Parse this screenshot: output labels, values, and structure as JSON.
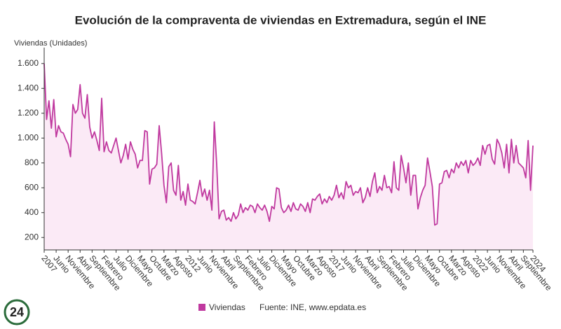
{
  "logo": "24",
  "chart_data": {
    "type": "line",
    "title": "Evolución de la compraventa de viviendas en Extremadura, según el INE",
    "y_label": "Viviendas (Unidades)",
    "source": "Fuente: INE, www.epdata.es",
    "categories": [
      "2007",
      null,
      null,
      null,
      null,
      "Junio",
      null,
      null,
      null,
      null,
      "Noviembre",
      null,
      null,
      null,
      null,
      "Abril",
      null,
      null,
      null,
      null,
      "Septiembre",
      null,
      null,
      null,
      null,
      "Febrero",
      null,
      null,
      null,
      null,
      "Julio",
      null,
      null,
      null,
      null,
      "Diciembre",
      null,
      null,
      null,
      null,
      "Mayo",
      null,
      null,
      null,
      null,
      "Octubre",
      null,
      null,
      null,
      null,
      "Marzo",
      null,
      null,
      null,
      null,
      "Agosto",
      null,
      null,
      null,
      null,
      "2012",
      null,
      null,
      null,
      null,
      "Junio",
      null,
      null,
      null,
      null,
      "Noviembre",
      null,
      null,
      null,
      null,
      "Abril",
      null,
      null,
      null,
      null,
      "Septiembre",
      null,
      null,
      null,
      null,
      "Febrero",
      null,
      null,
      null,
      null,
      "Julio",
      null,
      null,
      null,
      null,
      "Diciembre",
      null,
      null,
      null,
      null,
      "Mayo",
      null,
      null,
      null,
      null,
      "Octubre",
      null,
      null,
      null,
      null,
      "Marzo",
      null,
      null,
      null,
      null,
      "Agosto",
      null,
      null,
      null,
      null,
      "2017",
      null,
      null,
      null,
      null,
      "Junio",
      null,
      null,
      null,
      null,
      "Noviembre",
      null,
      null,
      null,
      null,
      "Abril",
      null,
      null,
      null,
      null,
      "Septiembre",
      null,
      null,
      null,
      null,
      "Febrero",
      null,
      null,
      null,
      null,
      "Julio",
      null,
      null,
      null,
      null,
      "Diciembre",
      null,
      null,
      null,
      null,
      "Mayo",
      null,
      null,
      null,
      null,
      "Octubre",
      null,
      null,
      null,
      null,
      "Marzo",
      null,
      null,
      null,
      null,
      "Agosto",
      null,
      null,
      null,
      null,
      "2022",
      null,
      null,
      null,
      null,
      "Junio",
      null,
      null,
      null,
      null,
      "Noviembre",
      null,
      null,
      null,
      null,
      "Abril",
      null,
      null,
      null,
      null,
      "Septiembre",
      null,
      null,
      null,
      "2024"
    ],
    "series": [
      {
        "name": "Viviendas",
        "color": "#c0399f",
        "values": [
          1600,
          1150,
          1300,
          1080,
          1310,
          1010,
          1100,
          1050,
          1040,
          990,
          950,
          850,
          1270,
          1200,
          1230,
          1430,
          1200,
          1160,
          1350,
          1090,
          1000,
          1050,
          980,
          900,
          1320,
          890,
          970,
          900,
          880,
          940,
          1000,
          900,
          800,
          860,
          950,
          830,
          970,
          910,
          870,
          760,
          820,
          820,
          1060,
          1050,
          630,
          750,
          760,
          790,
          1100,
          880,
          620,
          480,
          770,
          800,
          580,
          540,
          780,
          500,
          570,
          460,
          630,
          500,
          490,
          470,
          560,
          660,
          530,
          590,
          500,
          580,
          420,
          1130,
          790,
          350,
          410,
          420,
          340,
          360,
          330,
          400,
          350,
          380,
          470,
          400,
          440,
          420,
          460,
          450,
          400,
          470,
          440,
          420,
          460,
          410,
          330,
          450,
          430,
          600,
          590,
          440,
          400,
          420,
          460,
          410,
          480,
          430,
          420,
          470,
          450,
          410,
          480,
          400,
          510,
          500,
          530,
          550,
          470,
          510,
          480,
          530,
          500,
          540,
          620,
          520,
          560,
          510,
          650,
          600,
          620,
          540,
          570,
          560,
          600,
          480,
          520,
          600,
          530,
          650,
          720,
          560,
          610,
          580,
          700,
          600,
          610,
          560,
          810,
          600,
          580,
          860,
          760,
          640,
          800,
          540,
          700,
          700,
          430,
          520,
          580,
          620,
          840,
          730,
          610,
          300,
          310,
          630,
          640,
          730,
          740,
          680,
          750,
          720,
          800,
          760,
          810,
          780,
          820,
          720,
          820,
          780,
          800,
          840,
          780,
          940,
          870,
          940,
          950,
          830,
          790,
          990,
          950,
          880,
          760,
          950,
          720,
          990,
          800,
          940,
          800,
          780,
          760,
          680,
          980,
          580,
          940
        ]
      }
    ],
    "ylim": [
      100,
      1700
    ],
    "yticks": [
      200,
      400,
      600,
      800,
      {
        "value": 1000,
        "label": "1.000"
      },
      {
        "value": 1200,
        "label": "1.200"
      },
      {
        "value": 1400,
        "label": "1.400"
      },
      {
        "value": 1600,
        "label": "1.600"
      }
    ],
    "grid": false,
    "area_fill": "#fbeaf6"
  }
}
